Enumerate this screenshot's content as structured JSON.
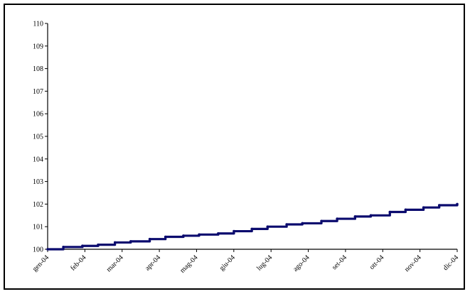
{
  "chart_data": {
    "type": "line",
    "title": "",
    "xlabel": "",
    "ylabel": "",
    "ylim": [
      100,
      110
    ],
    "yticks": [
      "100",
      "101",
      "102",
      "103",
      "104",
      "105",
      "106",
      "107",
      "108",
      "109",
      "110"
    ],
    "xticks": [
      "gen-04",
      "feb-04",
      "mar-04",
      "apr-04",
      "mag-04",
      "giu-04",
      "lug-04",
      "ago-04",
      "set-04",
      "ott-04",
      "nov-04",
      "dic-04"
    ],
    "grid": false,
    "legend": "none",
    "line_color": "#0b0b6e",
    "series": [
      {
        "x": [
          "2004-01-01",
          "2004-01-15",
          "2004-02-01",
          "2004-02-15",
          "2004-03-01",
          "2004-03-15",
          "2004-04-01",
          "2004-04-15",
          "2004-05-01",
          "2004-05-15",
          "2004-06-01",
          "2004-06-15",
          "2004-07-01",
          "2004-07-15",
          "2004-08-01",
          "2004-08-15",
          "2004-09-01",
          "2004-09-15",
          "2004-10-01",
          "2004-10-15",
          "2004-11-01",
          "2004-11-15",
          "2004-12-01",
          "2004-12-15",
          "2004-12-31"
        ],
        "values": [
          100.0,
          100.1,
          100.15,
          100.2,
          100.3,
          100.35,
          100.45,
          100.55,
          100.6,
          100.65,
          100.7,
          100.8,
          100.9,
          101.0,
          101.1,
          101.15,
          101.25,
          101.35,
          101.45,
          101.5,
          101.65,
          101.75,
          101.85,
          101.95,
          102.0
        ]
      }
    ]
  }
}
